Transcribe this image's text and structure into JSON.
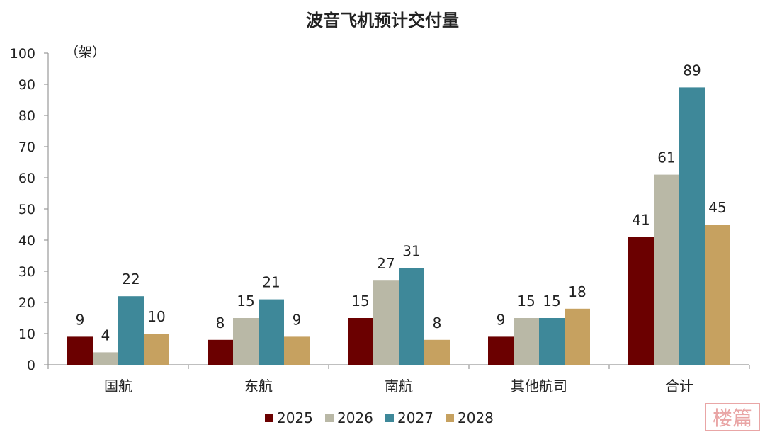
{
  "chart_data": {
    "type": "bar",
    "title": "波音飞机预计交付量",
    "unit_label": "（架）",
    "categories": [
      "国航",
      "东航",
      "南航",
      "其他航司",
      "合计"
    ],
    "series": [
      {
        "name": "2025",
        "color": "#6B0000",
        "values": [
          9,
          8,
          15,
          9,
          41
        ]
      },
      {
        "name": "2026",
        "color": "#B9B8A6",
        "values": [
          4,
          15,
          27,
          15,
          61
        ]
      },
      {
        "name": "2027",
        "color": "#3E8899",
        "values": [
          22,
          21,
          31,
          15,
          89
        ]
      },
      {
        "name": "2028",
        "color": "#C6A160",
        "values": [
          10,
          9,
          8,
          18,
          45
        ]
      }
    ],
    "ylim": [
      0,
      100
    ],
    "yticks": [
      0,
      10,
      20,
      30,
      40,
      50,
      60,
      70,
      80,
      90,
      100
    ],
    "grid": false,
    "legend_position": "bottom"
  },
  "watermark": {
    "text": "楼篇",
    "color": "#E08080"
  }
}
